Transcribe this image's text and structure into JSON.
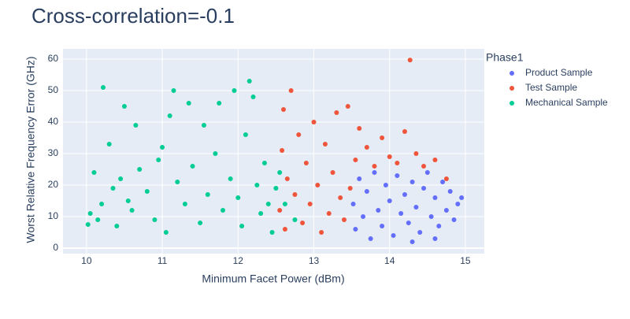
{
  "chart_data": {
    "type": "scatter",
    "title": "Cross-correlation=-0.1",
    "x_label": "Minimum Facet Power (dBm)",
    "y_label": "Worst Relative Frequency Error (GHz)",
    "legend_title": "Phase1",
    "legend_position": "right",
    "grid": true,
    "xlim": [
      9.69,
      15.25
    ],
    "ylim": [
      -1.75,
      63.25
    ],
    "xticks": [
      10,
      11,
      12,
      13,
      14,
      15
    ],
    "yticks": [
      0,
      10,
      20,
      30,
      40,
      50,
      60
    ],
    "series": [
      {
        "name": "Product Sample",
        "color": "#636efa",
        "x": [
          13.52,
          13.55,
          13.6,
          13.65,
          13.7,
          13.75,
          13.8,
          13.85,
          13.9,
          13.95,
          14.0,
          14.05,
          14.1,
          14.15,
          14.2,
          14.25,
          14.3,
          14.35,
          14.4,
          14.45,
          14.5,
          14.55,
          14.6,
          14.65,
          14.7,
          14.75,
          14.8,
          14.85,
          14.9,
          14.95,
          14.6,
          14.3
        ],
        "values": [
          14,
          6,
          22,
          10,
          18,
          3,
          24,
          12,
          7,
          20,
          15,
          4,
          23,
          11,
          17,
          8,
          21,
          13,
          5,
          19,
          24,
          10,
          16,
          7,
          21,
          12,
          18,
          9,
          14,
          16,
          3,
          2
        ]
      },
      {
        "name": "Test Sample",
        "color": "#EF553B",
        "x": [
          12.55,
          12.58,
          12.6,
          12.62,
          12.65,
          12.7,
          12.75,
          12.8,
          12.85,
          12.9,
          12.95,
          13.0,
          13.05,
          13.1,
          13.15,
          13.2,
          13.25,
          13.3,
          13.35,
          13.4,
          13.45,
          13.48,
          13.55,
          13.6,
          13.7,
          13.8,
          13.9,
          14.0,
          14.1,
          14.2,
          14.27,
          14.35,
          14.45,
          14.6,
          14.75
        ],
        "values": [
          12,
          31,
          44,
          6,
          22,
          50,
          17,
          36,
          8,
          27,
          14,
          40,
          20,
          5,
          33,
          11,
          24,
          43,
          16,
          9,
          45,
          19,
          28,
          38,
          32,
          26,
          35,
          29,
          27,
          37,
          59.7,
          30,
          26,
          28,
          22
        ]
      },
      {
        "name": "Mechanical Sample",
        "color": "#00cc96",
        "x": [
          10.02,
          10.05,
          10.1,
          10.15,
          10.2,
          10.22,
          10.3,
          10.35,
          10.4,
          10.45,
          10.5,
          10.55,
          10.6,
          10.65,
          10.7,
          10.8,
          10.9,
          10.95,
          11.0,
          11.05,
          11.1,
          11.15,
          11.2,
          11.3,
          11.35,
          11.4,
          11.5,
          11.55,
          11.6,
          11.7,
          11.75,
          11.8,
          11.9,
          11.95,
          12.0,
          12.05,
          12.1,
          12.15,
          12.2,
          12.25,
          12.3,
          12.35,
          12.4,
          12.45,
          12.5,
          12.55,
          12.62,
          12.75
        ],
        "values": [
          7.5,
          11,
          24,
          9,
          14,
          51,
          33,
          19,
          7,
          22,
          45,
          15,
          12,
          39,
          25,
          18,
          9,
          28,
          32,
          5,
          42,
          50,
          21,
          14,
          46,
          26,
          8,
          39,
          17,
          30,
          46,
          12,
          22,
          50,
          16,
          7,
          36,
          53,
          48,
          20,
          11,
          27,
          14,
          5,
          19,
          24,
          14,
          9
        ]
      }
    ]
  }
}
